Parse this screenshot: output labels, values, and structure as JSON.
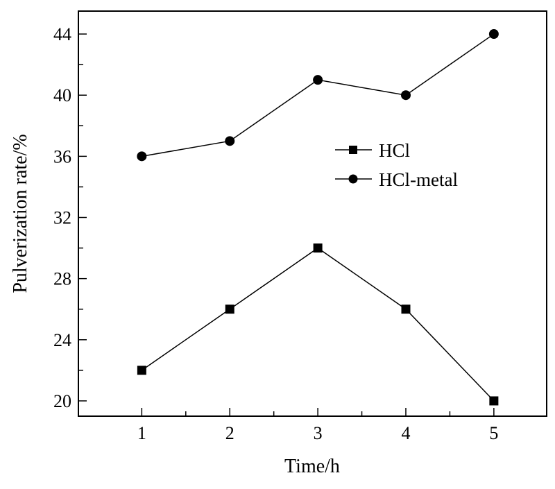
{
  "chart_data": {
    "type": "line",
    "x": [
      1,
      2,
      3,
      4,
      5
    ],
    "xlabel": "Time/h",
    "ylabel": "Pulverization rate/%",
    "xlim": [
      0.28,
      5.6
    ],
    "ylim": [
      19,
      45.5
    ],
    "xticks": [
      "1",
      "2",
      "3",
      "4",
      "5"
    ],
    "yticks": [
      "20",
      "24",
      "28",
      "32",
      "36",
      "40",
      "44"
    ],
    "grid": false,
    "legend_position": "center-right",
    "series": [
      {
        "name": "HCl",
        "marker": "square",
        "values": [
          22,
          26,
          30,
          26,
          20
        ]
      },
      {
        "name": "HCl-metal",
        "marker": "circle",
        "values": [
          36,
          37,
          41,
          40,
          44
        ]
      }
    ]
  }
}
